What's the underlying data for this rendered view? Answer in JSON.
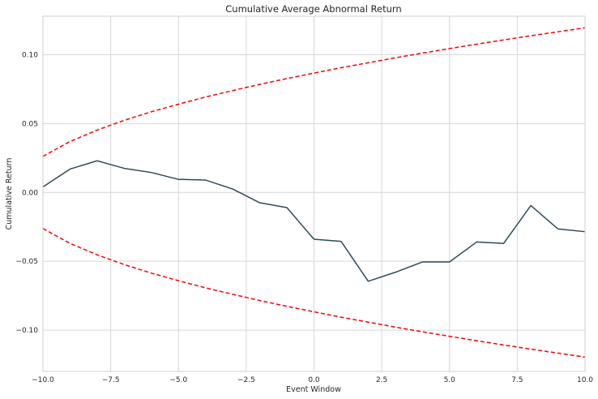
{
  "chart_data": {
    "type": "line",
    "title": "Cumulative Average Abnormal Return",
    "xlabel": "Event Window",
    "ylabel": "Cumulative Return",
    "xlim": [
      -10,
      10
    ],
    "ylim": [
      -0.13,
      0.128
    ],
    "grid": true,
    "xticks": [
      -10,
      -7.5,
      -5,
      -2.5,
      0,
      2.5,
      5,
      7.5,
      10
    ],
    "xtick_labels": [
      "−10.0",
      "−7.5",
      "−5.0",
      "−2.5",
      "0.0",
      "2.5",
      "5.0",
      "7.5",
      "10.0"
    ],
    "yticks": [
      -0.1,
      -0.05,
      0.0,
      0.05,
      0.1
    ],
    "ytick_labels": [
      "−0.10",
      "−0.05",
      "0.00",
      "0.05",
      "0.10"
    ],
    "series": [
      {
        "style": "solid",
        "color": "#2f4a56",
        "x": [
          -10,
          -9,
          -8,
          -7,
          -6,
          -5,
          -4,
          -3,
          -2,
          -1,
          0,
          1,
          2,
          3,
          4,
          5,
          6,
          7,
          8,
          9,
          10
        ],
        "values": [
          0.004,
          0.017,
          0.023,
          0.0175,
          0.0145,
          0.0095,
          0.009,
          0.0025,
          -0.0075,
          -0.011,
          -0.034,
          -0.0355,
          -0.0645,
          -0.058,
          -0.0505,
          -0.0505,
          -0.036,
          -0.037,
          -0.0095,
          -0.0265,
          -0.0285
        ]
      },
      {
        "style": "dashed",
        "color": "#ff0000",
        "x": [
          -10,
          -9,
          -8,
          -7,
          -6,
          -5,
          -4,
          -3,
          -2,
          -1,
          0,
          1,
          2,
          3,
          4,
          5,
          6,
          7,
          8,
          9,
          10
        ],
        "values": [
          0.0262,
          0.037,
          0.0453,
          0.0524,
          0.0586,
          0.0641,
          0.0693,
          0.074,
          0.0785,
          0.0827,
          0.0867,
          0.0906,
          0.0942,
          0.0978,
          0.1012,
          0.1045,
          0.1077,
          0.1108,
          0.1138,
          0.1167,
          0.1196
        ]
      },
      {
        "style": "dashed",
        "color": "#ff0000",
        "x": [
          -10,
          -9,
          -8,
          -7,
          -6,
          -5,
          -4,
          -3,
          -2,
          -1,
          0,
          1,
          2,
          3,
          4,
          5,
          6,
          7,
          8,
          9,
          10
        ],
        "values": [
          -0.0262,
          -0.037,
          -0.0453,
          -0.0524,
          -0.0586,
          -0.0641,
          -0.0693,
          -0.074,
          -0.0785,
          -0.0827,
          -0.0867,
          -0.0906,
          -0.0942,
          -0.0978,
          -0.1012,
          -0.1045,
          -0.1077,
          -0.1108,
          -0.1138,
          -0.1167,
          -0.1196
        ]
      }
    ]
  }
}
